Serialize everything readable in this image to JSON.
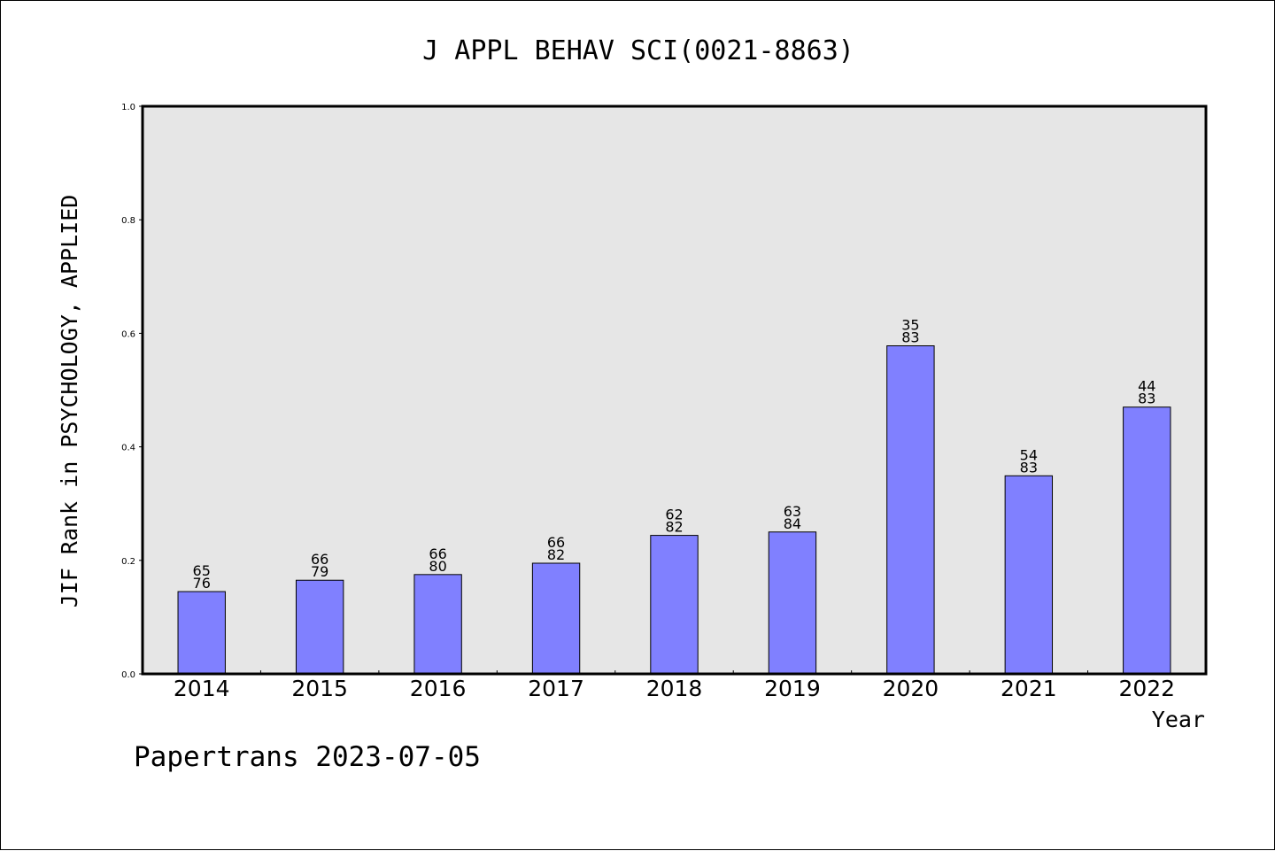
{
  "chart_data": {
    "type": "bar",
    "title": "J APPL BEHAV SCI(0021-8863)",
    "xlabel": "Year",
    "ylabel": "JIF Rank in PSYCHOLOGY, APPLIED",
    "ylim": [
      0.0,
      1.0
    ],
    "yticks": [
      "0.0",
      "0.2",
      "0.4",
      "0.6",
      "0.8",
      "1.0"
    ],
    "categories": [
      "2014",
      "2015",
      "2016",
      "2017",
      "2018",
      "2019",
      "2020",
      "2021",
      "2022"
    ],
    "values": [
      0.145,
      0.165,
      0.175,
      0.195,
      0.244,
      0.25,
      0.578,
      0.349,
      0.47
    ],
    "rank": [
      "65",
      "66",
      "66",
      "66",
      "62",
      "63",
      "35",
      "54",
      "44"
    ],
    "total": [
      "76",
      "79",
      "80",
      "82",
      "82",
      "84",
      "83",
      "83",
      "83"
    ],
    "grid": false,
    "colors": {
      "bar": "#8080ff",
      "plot_background": "#e6e6e6"
    }
  },
  "footer": "Papertrans 2023-07-05"
}
